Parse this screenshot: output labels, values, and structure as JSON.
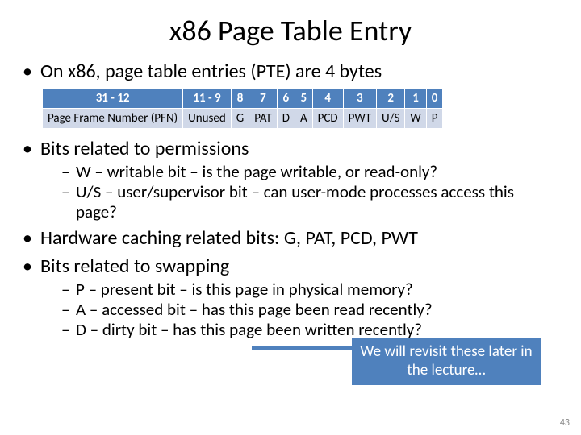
{
  "title": "x86 Page Table Entry",
  "bullets": {
    "b1": "On x86, page table entries (PTE) are 4 bytes",
    "b2": "Bits related to permissions",
    "b2s1": "W – writable bit – is the page writable, or read-only?",
    "b2s2": "U/S – user/supervisor bit – can user-mode processes access this page?",
    "b3": "Hardware caching related bits: G, PAT, PCD, PWT",
    "b4": "Bits related to swapping",
    "b4s1": "P – present bit – is this page in physical memory?",
    "b4s2": "A – accessed bit – has this page been read recently?",
    "b4s3": "D – dirty bit – has this page been written recently?"
  },
  "table": {
    "header_bg": "#4f81bd",
    "header_fg": "#ffffff",
    "row_bg": "#d0d8e8",
    "cols": {
      "c0h": "31 - 12",
      "c0v": "Page Frame Number (PFN)",
      "c1h": "11 - 9",
      "c1v": "Unused",
      "c2h": "8",
      "c2v": "G",
      "c3h": "7",
      "c3v": "PAT",
      "c4h": "6",
      "c4v": "D",
      "c5h": "5",
      "c5v": "A",
      "c6h": "4",
      "c6v": "PCD",
      "c7h": "3",
      "c7v": "PWT",
      "c8h": "2",
      "c8v": "U/S",
      "c9h": "1",
      "c9v": "W",
      "c10h": "0",
      "c10v": "P"
    }
  },
  "callout": "We will revisit these later in the lecture…",
  "page_number": "43"
}
